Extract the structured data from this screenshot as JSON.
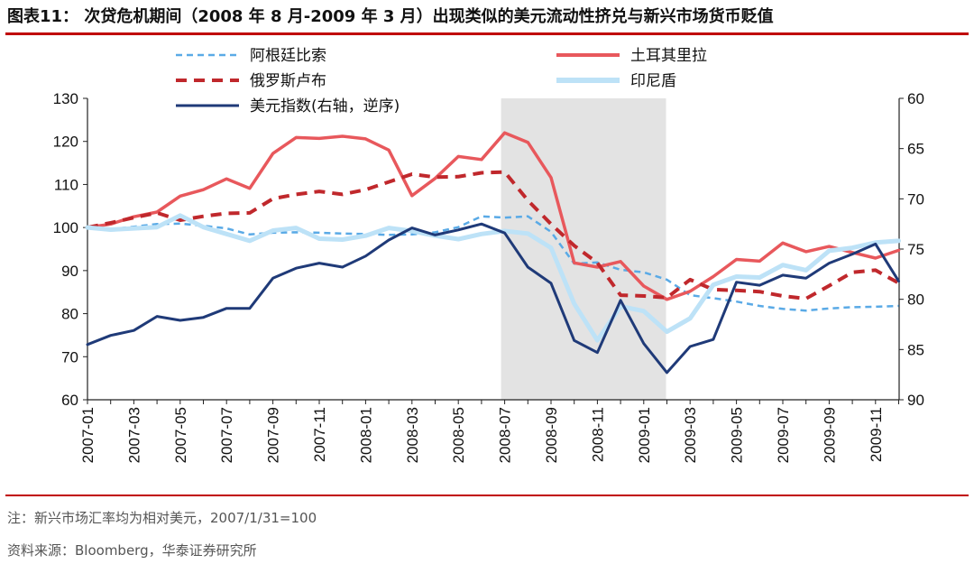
{
  "title": "图表11：  次贷危机期间（2008 年 8 月-2009 年 3 月）出现类似的美元流动性挤兑与新兴市场货币贬值",
  "note": "注：新兴市场汇率均为相对美元，2007/1/31=100",
  "source": "资料来源：Bloomberg，华泰证券研究所",
  "colors": {
    "title_rule": "#c00000",
    "shade": "#e3e3e3",
    "argentina": "#5aaae6",
    "turkey": "#e8585c",
    "russia": "#c0282c",
    "indonesia": "#bde2f7",
    "dxy": "#1f3a78"
  },
  "chart_data": {
    "type": "line",
    "x": [
      "2007-01",
      "2007-02",
      "2007-03",
      "2007-04",
      "2007-05",
      "2007-06",
      "2007-07",
      "2007-08",
      "2007-09",
      "2007-10",
      "2007-11",
      "2007-12",
      "2008-01",
      "2008-02",
      "2008-03",
      "2008-04",
      "2008-05",
      "2008-06",
      "2008-07",
      "2008-08",
      "2008-09",
      "2008-10",
      "2008-11",
      "2008-12",
      "2009-01",
      "2009-02",
      "2009-03",
      "2009-04",
      "2009-05",
      "2009-06",
      "2009-07",
      "2009-08",
      "2009-09",
      "2009-10",
      "2009-11",
      "2009-12"
    ],
    "x_tick_labels": [
      "2007-01",
      "2007-03",
      "2007-05",
      "2007-07",
      "2007-09",
      "2007-11",
      "2008-01",
      "2008-03",
      "2008-05",
      "2008-07",
      "2008-09",
      "2008-11",
      "2009-01",
      "2009-03",
      "2009-05",
      "2009-07",
      "2009-09",
      "2009-11"
    ],
    "y_left": {
      "min": 60,
      "max": 130,
      "ticks": [
        60,
        70,
        80,
        90,
        100,
        110,
        120,
        130
      ]
    },
    "y_right": {
      "min": 60,
      "max": 90,
      "inverted": true,
      "ticks": [
        60,
        65,
        70,
        75,
        80,
        85,
        90
      ]
    },
    "shaded_period": {
      "start": "2008-07",
      "end": "2009-02"
    },
    "legend_position": "top, two columns",
    "series": [
      {
        "name": "阿根廷比索",
        "axis": "left",
        "style": "dashed",
        "color_key": "argentina",
        "values": [
          100,
          99.6,
          100.2,
          100.8,
          100.9,
          100.4,
          99.8,
          98.4,
          98.8,
          98.9,
          98.8,
          98.6,
          98.5,
          98.3,
          98.4,
          98.9,
          100.1,
          102.6,
          102.3,
          102.6,
          99,
          91.6,
          91.9,
          90.2,
          89.6,
          87.9,
          84.3,
          83.6,
          82.8,
          81.8,
          81.1,
          80.7,
          81.2,
          81.5,
          81.6,
          81.8
        ]
      },
      {
        "name": "土耳其里拉",
        "axis": "left",
        "style": "solid",
        "color_key": "turkey",
        "values": [
          100,
          100.8,
          102.5,
          103.6,
          107.3,
          108.8,
          111.3,
          109.1,
          117.2,
          120.9,
          120.7,
          121.2,
          120.6,
          118,
          107.4,
          111.4,
          116.5,
          115.8,
          122,
          119.8,
          111.6,
          91.8,
          90.8,
          92.1,
          86.4,
          83.3,
          85.2,
          88.6,
          92.6,
          92.2,
          96.4,
          94.4,
          95.6,
          94.2,
          92.9,
          94.7
        ]
      },
      {
        "name": "俄罗斯卢布",
        "axis": "left",
        "style": "dashed",
        "color_key": "russia",
        "values": [
          100,
          101.1,
          102.3,
          103.4,
          101.7,
          102.6,
          103.3,
          103.4,
          106.7,
          107.7,
          108.4,
          107.7,
          108.8,
          110.6,
          112.4,
          111.7,
          111.8,
          112.7,
          112.9,
          106.3,
          100.8,
          95.8,
          91.8,
          84.3,
          84.1,
          83.7,
          87.9,
          85.6,
          85.4,
          85.1,
          84.1,
          83.5,
          86.5,
          89.6,
          90.1,
          87.1
        ]
      },
      {
        "name": "印尼盾",
        "axis": "left",
        "style": "solid",
        "color_key": "indonesia",
        "values": [
          100,
          99.5,
          99.8,
          100.1,
          102.8,
          100.1,
          98.5,
          96.9,
          99.3,
          99.9,
          97.4,
          97.2,
          98.1,
          99.9,
          99.2,
          98.1,
          97.3,
          98.5,
          99.2,
          98.6,
          95.3,
          82.3,
          73.8,
          81.7,
          80.6,
          75.8,
          78.9,
          86.7,
          88.6,
          88.4,
          91.3,
          90.1,
          94.6,
          95.3,
          96.5,
          96.9
        ]
      },
      {
        "name": "美元指数(右轴，逆序)",
        "axis": "right",
        "style": "solid",
        "color_key": "dxy",
        "values": [
          84.5,
          83.6,
          83.1,
          81.7,
          82.1,
          81.8,
          80.9,
          80.9,
          77.9,
          76.9,
          76.4,
          76.8,
          75.7,
          74.1,
          72.9,
          73.6,
          73.1,
          72.5,
          73.4,
          76.8,
          78.4,
          84.1,
          85.3,
          80.1,
          84.4,
          87.3,
          84.7,
          84.0,
          78.3,
          78.6,
          77.6,
          77.9,
          76.4,
          75.5,
          74.5,
          78.2
        ]
      }
    ]
  }
}
